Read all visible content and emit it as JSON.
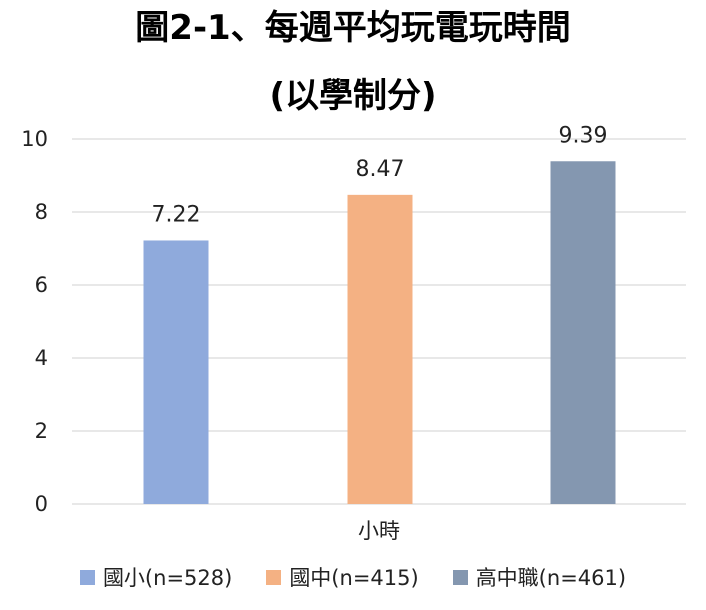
{
  "chart_data": {
    "type": "bar",
    "title": "圖2-1、每週平均玩電玩時間",
    "subtitle": "(以學制分)",
    "categories": [
      "小時"
    ],
    "series": [
      {
        "name": "國小(n=528)",
        "values": [
          7.22
        ],
        "label": "7.22",
        "color": "#8faadc"
      },
      {
        "name": "國中(n=415)",
        "values": [
          8.47
        ],
        "label": "8.47",
        "color": "#f4b183"
      },
      {
        "name": "高中職(n=461)",
        "values": [
          9.39
        ],
        "label": "9.39",
        "color": "#8497b0"
      }
    ],
    "ylim": [
      0,
      10
    ],
    "yticks": [
      "0",
      "2",
      "4",
      "6",
      "8",
      "10"
    ],
    "grid": true,
    "gridColor": "#d9d9d9",
    "legend_position": "bottom"
  }
}
